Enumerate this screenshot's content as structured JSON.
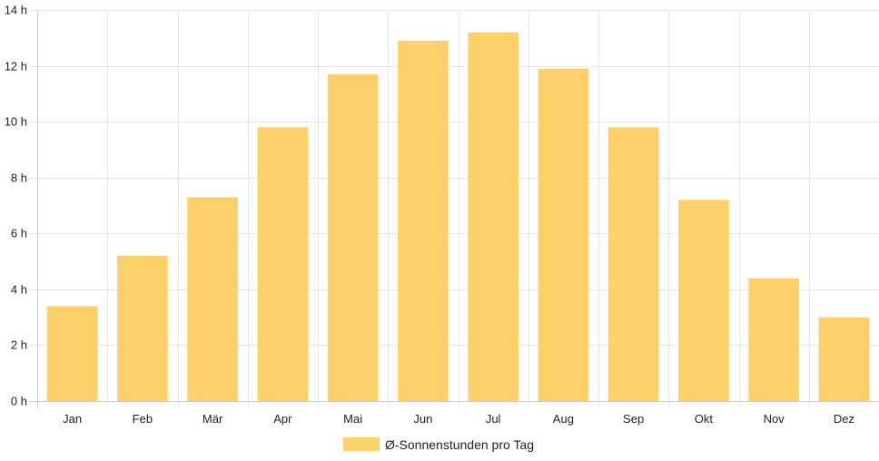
{
  "chart_data": {
    "type": "bar",
    "categories": [
      "Jan",
      "Feb",
      "Mär",
      "Apr",
      "Mai",
      "Jun",
      "Jul",
      "Aug",
      "Sep",
      "Okt",
      "Nov",
      "Dez"
    ],
    "series": [
      {
        "name": "Ø-Sonnenstunden pro Tag",
        "values": [
          3.4,
          5.2,
          7.3,
          9.8,
          11.7,
          12.9,
          13.2,
          11.9,
          9.8,
          7.2,
          4.4,
          3.0
        ]
      }
    ],
    "ylim": [
      0,
      14
    ],
    "yticks": [
      "0 h",
      "2 h",
      "4 h",
      "6 h",
      "8 h",
      "10 h",
      "12 h",
      "14 h"
    ],
    "ytick_values": [
      0,
      2,
      4,
      6,
      8,
      10,
      12,
      14
    ],
    "grid": true,
    "legend_position": "bottom",
    "colors": {
      "bar": "#fed06a",
      "grid": "#e6e6e6",
      "axis": "#cccccc",
      "text": "#222222"
    }
  }
}
